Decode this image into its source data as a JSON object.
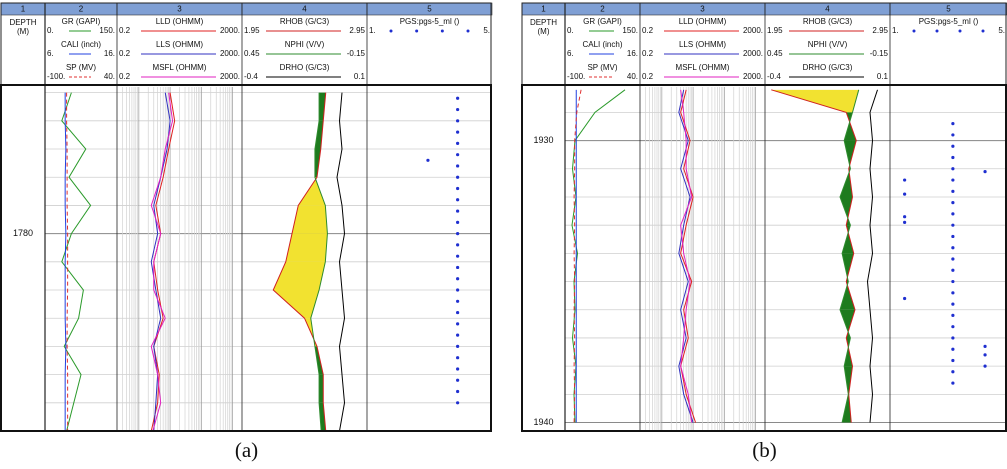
{
  "chart_data": [
    {
      "type": "well-log",
      "caption": "(a)",
      "ylim": [
        1774.8,
        1787.0
      ],
      "yticks": [
        1780
      ],
      "grid_depths": [
        1775,
        1776,
        1777,
        1778,
        1779,
        1780,
        1781,
        1782,
        1783,
        1784,
        1785,
        1786
      ],
      "depth": [
        1775,
        1776,
        1777,
        1778,
        1779,
        1780,
        1781,
        1782,
        1783,
        1784,
        1785,
        1786,
        1787
      ],
      "tracks": [
        {
          "number": "1",
          "depth_title": "DEPTH",
          "depth_unit": "(M)"
        },
        {
          "number": "2",
          "curves": [
            {
              "name": "GR (GAPI)",
              "color": "#2a9a2a",
              "scale": [
                {
                  "value": 0,
                  "label": "0."
                },
                {
                  "value": 150,
                  "label": "150."
                }
              ],
              "values": [
                55,
                35,
                85,
                50,
                95,
                55,
                35,
                80,
                70,
                40,
                75,
                60,
                45
              ]
            },
            {
              "name": "CALI (inch)",
              "color": "#2040e0",
              "scale": [
                {
                  "value": 6,
                  "label": "6."
                },
                {
                  "value": 16,
                  "label": "16."
                }
              ],
              "values": [
                8.8,
                8.8,
                8.9,
                8.8,
                8.8,
                8.9,
                8.8,
                8.8,
                8.8,
                8.9,
                8.8,
                8.8,
                8.8
              ]
            },
            {
              "name": "SP (MV)",
              "color": "#e03030",
              "dashed": true,
              "scale": [
                {
                  "value": -100,
                  "label": "-100."
                },
                {
                  "value": 40,
                  "label": "40."
                }
              ],
              "values": [
                -58,
                -58,
                -57,
                -57,
                -57,
                -56,
                -56,
                -56,
                -57,
                -57,
                -56,
                -56,
                -56
              ]
            }
          ]
        },
        {
          "number": "3",
          "curves": [
            {
              "name": "LLD (OHMM)",
              "color": "#e02020",
              "log_scale": true,
              "scale": [
                0.2,
                {
                  "value": 2000,
                  "label": "2000."
                }
              ],
              "values": [
                10,
                14,
                9,
                6,
                3.5,
                5,
                3,
                4,
                6,
                3,
                4.5,
                4,
                2.5
              ]
            },
            {
              "name": "LLS (OHMM)",
              "color": "#3030c0",
              "log_scale": true,
              "scale": [
                0.2,
                {
                  "value": 2000,
                  "label": "2000."
                }
              ],
              "values": [
                7,
                10,
                8,
                5,
                3,
                4,
                2.5,
                3.5,
                5,
                3,
                4,
                3.5,
                3
              ]
            },
            {
              "name": "MSFL (OHMM)",
              "color": "#e020c0",
              "log_scale": true,
              "scale": [
                0.2,
                {
                  "value": 2000,
                  "label": "2000."
                }
              ],
              "values": [
                9,
                12,
                7,
                5,
                2.5,
                5,
                3,
                3,
                7,
                2.5,
                4,
                5,
                2.8
              ]
            }
          ]
        },
        {
          "number": "4",
          "fill_colors": [
            "#1e7b1e",
            "#f2e230"
          ],
          "curves": [
            {
              "name": "RHOB (G/C3)",
              "color": "#d02020",
              "scale": [
                1.95,
                2.95
              ],
              "values": [
                2.62,
                2.6,
                2.58,
                2.55,
                2.4,
                2.35,
                2.3,
                2.2,
                2.45,
                2.55,
                2.6,
                2.6,
                2.62
              ]
            },
            {
              "name": "NPHI (V/V)",
              "color": "#2e8b2e",
              "scale": [
                0.45,
                -0.15
              ],
              "values": [
                0.08,
                0.08,
                0.1,
                0.1,
                0.05,
                0.04,
                0.05,
                0.08,
                0.12,
                0.1,
                0.08,
                0.08,
                0.07
              ]
            },
            {
              "name": "DRHO (G/C3)",
              "color": "#000000",
              "scale": [
                -0.4,
                0.1
              ],
              "values": [
                0.0,
                -0.01,
                0.0,
                -0.02,
                0.0,
                0.01,
                -0.01,
                0.0,
                0.01,
                -0.01,
                0.0,
                0.01,
                -0.01
              ]
            }
          ]
        },
        {
          "number": "5",
          "points": {
            "name": "PGS:pgs-5_ml ()",
            "color": "#1f2fd0",
            "scale": [
              {
                "value": 1,
                "label": "1."
              },
              {
                "value": 5,
                "label": "5."
              }
            ],
            "x": [
              1775.2,
              1775.6,
              1776,
              1776.4,
              1776.8,
              1777.2,
              1777.6,
              1778,
              1778.4,
              1778.8,
              1779.2,
              1779.6,
              1780,
              1780.4,
              1780.8,
              1781.2,
              1781.6,
              1782,
              1782.4,
              1782.8,
              1783.2,
              1783.6,
              1784,
              1784.4,
              1784.8,
              1785.2,
              1785.6,
              1786,
              1777.4
            ],
            "values": [
              3.9,
              3.9,
              3.9,
              3.9,
              3.9,
              3.9,
              3.9,
              3.9,
              3.9,
              3.9,
              3.9,
              3.9,
              3.9,
              3.9,
              3.9,
              3.9,
              3.9,
              3.9,
              3.9,
              3.9,
              3.9,
              3.9,
              3.9,
              3.9,
              3.9,
              3.9,
              3.9,
              3.9,
              2.95
            ]
          }
        }
      ]
    },
    {
      "type": "well-log",
      "caption": "(b)",
      "ylim": [
        1928.1,
        1940.3
      ],
      "yticks": [
        1930,
        1940
      ],
      "grid_depths": [
        1929,
        1930,
        1931,
        1932,
        1933,
        1934,
        1935,
        1936,
        1937,
        1938,
        1939,
        1940
      ],
      "depth": [
        1928.2,
        1929,
        1930,
        1931,
        1932,
        1933,
        1934,
        1935,
        1936,
        1937,
        1938,
        1939,
        1940
      ],
      "tracks": [
        {
          "number": "1",
          "depth_title": "DEPTH",
          "depth_unit": "(M)"
        },
        {
          "number": "2",
          "curves": [
            {
              "name": "GR (GAPI)",
              "color": "#2a9a2a",
              "scale": [
                {
                  "value": 0,
                  "label": "0."
                },
                {
                  "value": 150,
                  "label": "150."
                }
              ],
              "values": [
                120,
                60,
                20,
                15,
                22,
                14,
                25,
                18,
                20,
                15,
                22,
                18,
                20
              ]
            },
            {
              "name": "CALI (inch)",
              "color": "#2040e0",
              "scale": [
                {
                  "value": 6,
                  "label": "6."
                },
                {
                  "value": 16,
                  "label": "16."
                }
              ],
              "values": [
                7.5,
                7.5,
                7.5,
                7.5,
                7.5,
                7.5,
                7.5,
                7.5,
                7.5,
                7.5,
                7.5,
                7.5,
                7.5
              ]
            },
            {
              "name": "SP (MV)",
              "color": "#e03030",
              "dashed": true,
              "scale": [
                {
                  "value": -100,
                  "label": "-100."
                },
                {
                  "value": 40,
                  "label": "40."
                }
              ],
              "values": [
                -70,
                -78,
                -82,
                -82,
                -83,
                -82,
                -83,
                -82,
                -83,
                -82,
                -83,
                -82,
                -83
              ]
            }
          ]
        },
        {
          "number": "3",
          "curves": [
            {
              "name": "LLD (OHMM)",
              "color": "#e02020",
              "log_scale": true,
              "scale": [
                0.2,
                {
                  "value": 2000,
                  "label": "2000."
                }
              ],
              "values": [
                6,
                4,
                8,
                5,
                10,
                6,
                4,
                9,
                5,
                7,
                4,
                6,
                12
              ]
            },
            {
              "name": "LLS (OHMM)",
              "color": "#3030c0",
              "log_scale": true,
              "scale": [
                0.2,
                {
                  "value": 2000,
                  "label": "2000."
                }
              ],
              "values": [
                5,
                3.5,
                7,
                4,
                8,
                5,
                3.5,
                7,
                4,
                6,
                3.5,
                5,
                10
              ]
            },
            {
              "name": "MSFL (OHMM)",
              "color": "#e020c0",
              "log_scale": true,
              "scale": [
                0.2,
                {
                  "value": 2000,
                  "label": "2000."
                }
              ],
              "values": [
                4,
                5,
                6,
                6,
                9,
                4,
                5,
                8,
                6,
                5,
                4,
                7,
                9
              ]
            }
          ]
        },
        {
          "number": "4",
          "fill_colors": [
            "#1e7b1e",
            "#f2e230"
          ],
          "curves": [
            {
              "name": "RHOB (G/C3)",
              "color": "#d02020",
              "scale": [
                1.95,
                2.95
              ],
              "values": [
                2.0,
                2.6,
                2.68,
                2.62,
                2.65,
                2.6,
                2.66,
                2.6,
                2.67,
                2.6,
                2.65,
                2.62,
                2.64
              ]
            },
            {
              "name": "NPHI (V/V)",
              "color": "#2e8b2e",
              "scale": [
                0.45,
                -0.15
              ],
              "values": [
                0.0,
                0.03,
                0.07,
                0.04,
                0.09,
                0.04,
                0.08,
                0.05,
                0.09,
                0.04,
                0.07,
                0.05,
                0.08
              ]
            },
            {
              "name": "DRHO (G/C3)",
              "color": "#000000",
              "scale": [
                -0.4,
                0.1
              ],
              "values": [
                0.05,
                0.02,
                0.03,
                0.02,
                0.03,
                0.02,
                0.03,
                0.01,
                0.02,
                0.03,
                0.02,
                0.03,
                0.02
              ]
            }
          ]
        },
        {
          "number": "5",
          "points": {
            "name": "PGS:pgs-5_ml ()",
            "color": "#1f2fd0",
            "scale": [
              {
                "value": 1,
                "label": "1."
              },
              {
                "value": 5,
                "label": "5."
              }
            ],
            "x": [
              1929.4,
              1929.8,
              1930.2,
              1930.6,
              1931,
              1931.4,
              1931.8,
              1932.2,
              1932.6,
              1933,
              1933.4,
              1933.8,
              1934.2,
              1934.6,
              1935,
              1935.4,
              1935.8,
              1936.2,
              1936.6,
              1937,
              1937.4,
              1937.8,
              1938.2,
              1938.6,
              1931.4,
              1931.9,
              1932.7,
              1932.9,
              1935.6,
              1931.1,
              1937.3,
              1937.6,
              1938.0
            ],
            "values": [
              3.15,
              3.15,
              3.15,
              3.15,
              3.15,
              3.15,
              3.15,
              3.15,
              3.15,
              3.15,
              3.15,
              3.15,
              3.15,
              3.15,
              3.15,
              3.15,
              3.15,
              3.15,
              3.15,
              3.15,
              3.15,
              3.15,
              3.15,
              3.15,
              1.5,
              1.5,
              1.5,
              1.5,
              1.5,
              4.25,
              4.25,
              4.25,
              4.25
            ]
          }
        }
      ]
    }
  ]
}
